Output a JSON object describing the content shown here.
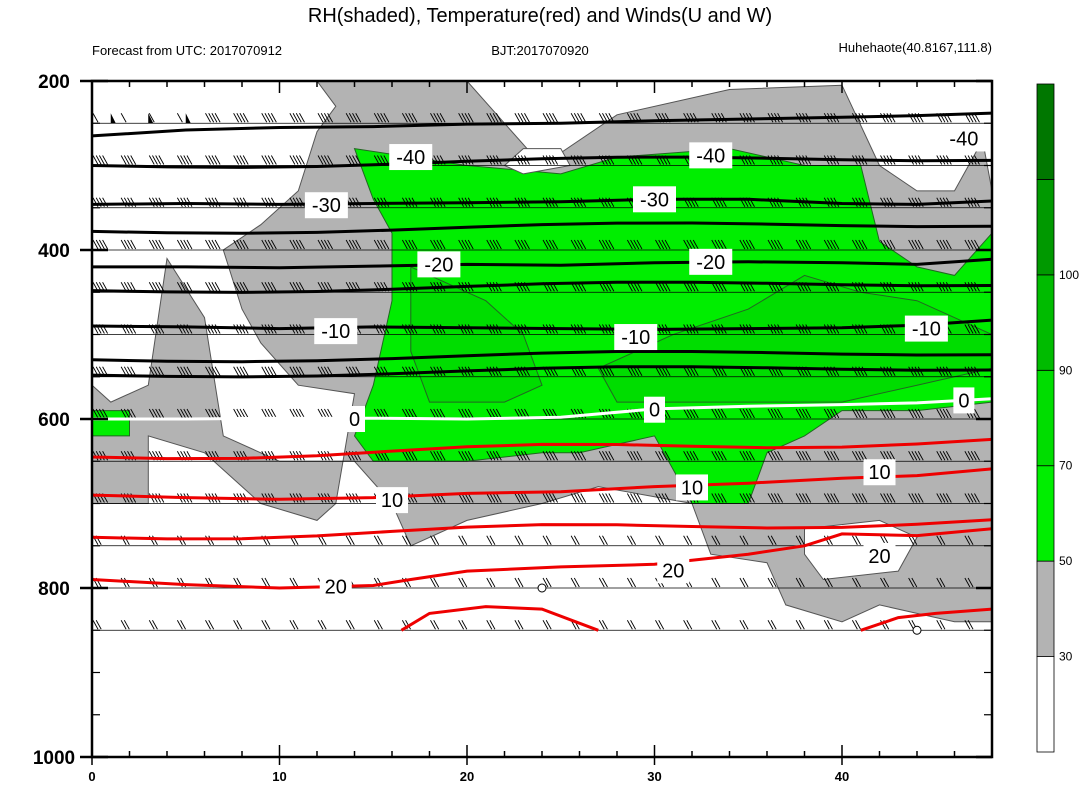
{
  "chart_data": {
    "type": "area",
    "title": "RH(shaded), Temperature(red) and Winds(U and W)",
    "left_string": "Forecast from UTC: 2017070912",
    "center_string": "BJT:2017070920",
    "right_string": "Huhehaote(40.8167,111.8)",
    "xlim": [
      0,
      48
    ],
    "ylim": [
      1000,
      200
    ],
    "x_ticks": [
      "0",
      "10",
      "20",
      "30",
      "40"
    ],
    "y_ticks": [
      "200",
      "400",
      "600",
      "800",
      "1000"
    ],
    "wind_levels": [
      250,
      300,
      350,
      400,
      450,
      500,
      550,
      600,
      650,
      700,
      750,
      800,
      850
    ],
    "colorbar": {
      "labels": [
        "30",
        "50",
        "70",
        "90",
        "100"
      ],
      "colors": [
        "#ffffff",
        "#b3b3b3",
        "#00ee00",
        "#00dd00",
        "#00bb00",
        "#009900",
        "#007700"
      ]
    },
    "temperature_contours": [
      {
        "value": -40,
        "color": "black",
        "label": "-40",
        "points": [
          [
            0,
            265
          ],
          [
            5,
            258
          ],
          [
            10,
            255
          ],
          [
            15,
            254
          ],
          [
            20,
            251
          ],
          [
            25,
            250
          ],
          [
            30,
            247
          ],
          [
            35,
            245
          ],
          [
            40,
            243
          ],
          [
            44,
            241
          ],
          [
            48,
            238
          ]
        ]
      },
      {
        "value": -30,
        "color": "black",
        "label": "-30",
        "points": [
          [
            0,
            346
          ],
          [
            5,
            345
          ],
          [
            10,
            346
          ],
          [
            15,
            345
          ],
          [
            20,
            344
          ],
          [
            25,
            343
          ],
          [
            30,
            340
          ],
          [
            35,
            340
          ],
          [
            40,
            345
          ],
          [
            44,
            346
          ],
          [
            48,
            342
          ]
        ]
      },
      {
        "value": -20,
        "color": "black",
        "label": "-20",
        "points": [
          [
            0,
            420
          ],
          [
            5,
            420
          ],
          [
            10,
            421
          ],
          [
            15,
            419
          ],
          [
            20,
            417
          ],
          [
            25,
            418
          ],
          [
            30,
            415
          ],
          [
            35,
            414
          ],
          [
            40,
            415
          ],
          [
            44,
            417
          ],
          [
            48,
            411
          ]
        ]
      },
      {
        "value": -10,
        "color": "black",
        "label": "-10",
        "points": [
          [
            0,
            490
          ],
          [
            5,
            491
          ],
          [
            10,
            493
          ],
          [
            15,
            491
          ],
          [
            20,
            492
          ],
          [
            25,
            493
          ],
          [
            30,
            494
          ],
          [
            35,
            493
          ],
          [
            40,
            492
          ],
          [
            44,
            489
          ],
          [
            48,
            483
          ]
        ]
      },
      {
        "value": 0,
        "color": "white",
        "label": "0",
        "points": [
          [
            0,
            600
          ],
          [
            5,
            600
          ],
          [
            10,
            599
          ],
          [
            15,
            599
          ],
          [
            20,
            600
          ],
          [
            25,
            598
          ],
          [
            30,
            588
          ],
          [
            35,
            585
          ],
          [
            40,
            583
          ],
          [
            44,
            581
          ],
          [
            48,
            576
          ]
        ]
      },
      {
        "value": 10,
        "color": "red",
        "label": "10",
        "points": [
          [
            0,
            690
          ],
          [
            5,
            693
          ],
          [
            10,
            695
          ],
          [
            15,
            693
          ],
          [
            20,
            688
          ],
          [
            25,
            686
          ],
          [
            30,
            680
          ],
          [
            35,
            676
          ],
          [
            40,
            670
          ],
          [
            44,
            667
          ],
          [
            48,
            659
          ]
        ]
      },
      {
        "value": 20,
        "color": "red",
        "label": "20",
        "points": [
          [
            0,
            790
          ],
          [
            5,
            796
          ],
          [
            10,
            800
          ],
          [
            15,
            797
          ],
          [
            17,
            790
          ],
          [
            20,
            780
          ],
          [
            25,
            775
          ],
          [
            30,
            772
          ],
          [
            35,
            760
          ],
          [
            38,
            750
          ],
          [
            40,
            736
          ],
          [
            44,
            738
          ],
          [
            48,
            730
          ]
        ]
      }
    ],
    "temperature_contour_labels": [
      {
        "text": "-40",
        "x": 17,
        "y": 290
      },
      {
        "text": "-40",
        "x": 33,
        "y": 288
      },
      {
        "text": "-40",
        "x": 46.5,
        "y": 268
      },
      {
        "text": "-30",
        "x": 12.5,
        "y": 347
      },
      {
        "text": "-30",
        "x": 30,
        "y": 340
      },
      {
        "text": "-20",
        "x": 18.5,
        "y": 417
      },
      {
        "text": "-20",
        "x": 33,
        "y": 414
      },
      {
        "text": "-10",
        "x": 13,
        "y": 496
      },
      {
        "text": "-10",
        "x": 29,
        "y": 503
      },
      {
        "text": "-10",
        "x": 44.5,
        "y": 493
      },
      {
        "text": "0",
        "x": 14,
        "y": 600
      },
      {
        "text": "0",
        "x": 30,
        "y": 589
      },
      {
        "text": "0",
        "x": 46.5,
        "y": 578
      },
      {
        "text": "10",
        "x": 16,
        "y": 696
      },
      {
        "text": "10",
        "x": 32,
        "y": 681
      },
      {
        "text": "10",
        "x": 42,
        "y": 663
      },
      {
        "text": "20",
        "x": 13,
        "y": 798
      },
      {
        "text": "20",
        "x": 31,
        "y": 779
      },
      {
        "text": "20",
        "x": 42,
        "y": 762
      }
    ],
    "rh_regions": [
      {
        "level": "50-70",
        "points": [
          [
            12,
            200
          ],
          [
            20,
            200
          ],
          [
            24,
            300
          ],
          [
            28,
            240
          ],
          [
            34,
            210
          ],
          [
            40,
            205
          ],
          [
            42,
            300
          ],
          [
            44,
            330
          ],
          [
            46,
            330
          ],
          [
            47.5,
            270
          ],
          [
            48,
            330
          ],
          [
            48,
            840
          ],
          [
            46,
            840
          ],
          [
            44,
            830
          ],
          [
            42,
            820
          ],
          [
            40,
            840
          ],
          [
            37,
            820
          ],
          [
            36,
            770
          ],
          [
            33,
            760
          ],
          [
            32,
            700
          ],
          [
            27,
            680
          ],
          [
            24,
            700
          ],
          [
            20,
            720
          ],
          [
            17,
            750
          ],
          [
            16,
            700
          ],
          [
            14,
            650
          ],
          [
            10,
            650
          ],
          [
            7,
            620
          ],
          [
            6,
            480
          ],
          [
            4,
            410
          ],
          [
            3,
            560
          ],
          [
            1,
            580
          ],
          [
            0,
            560
          ],
          [
            0,
            700
          ],
          [
            3,
            700
          ],
          [
            3,
            620
          ],
          [
            6,
            640
          ],
          [
            7,
            660
          ],
          [
            9,
            700
          ],
          [
            12,
            720
          ],
          [
            13,
            700
          ],
          [
            14,
            570
          ],
          [
            11,
            560
          ],
          [
            9,
            510
          ],
          [
            8,
            470
          ],
          [
            7,
            400
          ],
          [
            9,
            370
          ],
          [
            11,
            330
          ],
          [
            12,
            260
          ],
          [
            13,
            230
          ]
        ]
      },
      {
        "level": "70-90",
        "points": [
          [
            14,
            280
          ],
          [
            20,
            300
          ],
          [
            25,
            310
          ],
          [
            28,
            290
          ],
          [
            34,
            280
          ],
          [
            38,
            300
          ],
          [
            41,
            300
          ],
          [
            42,
            390
          ],
          [
            44,
            420
          ],
          [
            46,
            430
          ],
          [
            48,
            380
          ],
          [
            48,
            580
          ],
          [
            44,
            590
          ],
          [
            40,
            590
          ],
          [
            38,
            620
          ],
          [
            36,
            640
          ],
          [
            35,
            700
          ],
          [
            32,
            700
          ],
          [
            30,
            620
          ],
          [
            26,
            640
          ],
          [
            24,
            640
          ],
          [
            20,
            650
          ],
          [
            15,
            650
          ],
          [
            14,
            620
          ],
          [
            15,
            560
          ],
          [
            16,
            460
          ],
          [
            16,
            380
          ],
          [
            15,
            340
          ]
        ]
      },
      {
        "level": "70-90",
        "points": [
          [
            0,
            590
          ],
          [
            2,
            590
          ],
          [
            2,
            620
          ],
          [
            0,
            620
          ]
        ]
      },
      {
        "level": "90-100",
        "points": [
          [
            17,
            420
          ],
          [
            21,
            460
          ],
          [
            23,
            500
          ],
          [
            24,
            560
          ],
          [
            22,
            580
          ],
          [
            18,
            580
          ],
          [
            17,
            520
          ]
        ]
      },
      {
        "level": "90-100",
        "points": [
          [
            27,
            540
          ],
          [
            31,
            500
          ],
          [
            35,
            470
          ],
          [
            38,
            430
          ],
          [
            41,
            450
          ],
          [
            44,
            460
          ],
          [
            48,
            500
          ],
          [
            48,
            540
          ],
          [
            44,
            560
          ],
          [
            40,
            580
          ],
          [
            35,
            580
          ],
          [
            31,
            580
          ],
          [
            28,
            580
          ]
        ]
      }
    ],
    "rh_clear_pockets": [
      [
        [
          23,
          280
        ],
        [
          25,
          280
        ],
        [
          25.5,
          300
        ],
        [
          23,
          310
        ],
        [
          22,
          300
        ]
      ],
      [
        [
          38,
          730
        ],
        [
          42,
          720
        ],
        [
          44,
          740
        ],
        [
          43,
          780
        ],
        [
          39,
          790
        ],
        [
          38,
          760
        ]
      ]
    ],
    "calm_markers": [
      [
        24,
        800
      ],
      [
        44,
        850
      ]
    ]
  }
}
